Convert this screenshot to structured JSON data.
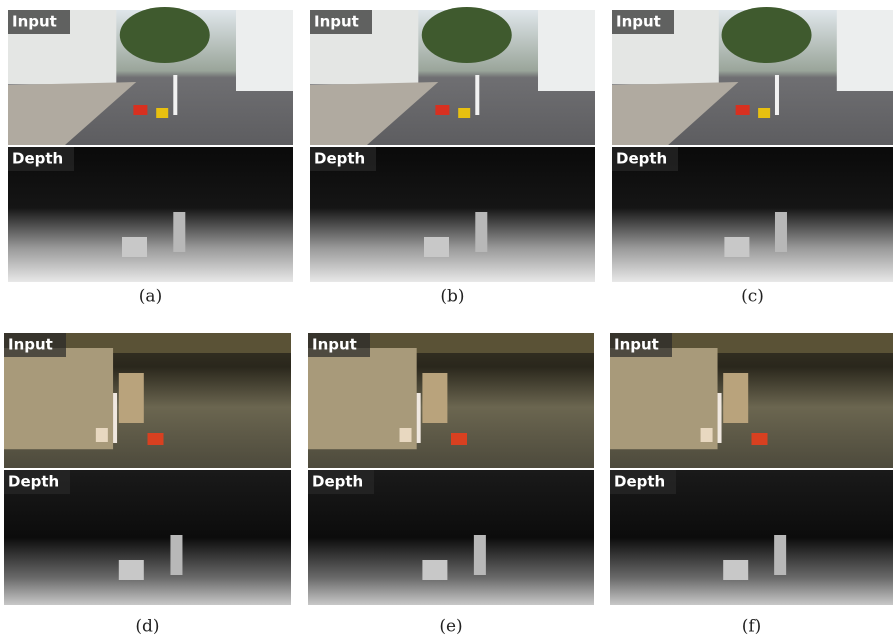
{
  "panels": [
    {
      "input_label": "Input",
      "depth_label": "Depth",
      "caption": "(a)"
    },
    {
      "input_label": "Input",
      "depth_label": "Depth",
      "caption": "(b)"
    },
    {
      "input_label": "Input",
      "depth_label": "Depth",
      "caption": "(c)"
    },
    {
      "input_label": "Input",
      "depth_label": "Depth",
      "caption": "(d)"
    },
    {
      "input_label": "Input",
      "depth_label": "Depth",
      "caption": "(e)"
    },
    {
      "input_label": "Input",
      "depth_label": "Depth",
      "caption": "(f)"
    }
  ]
}
